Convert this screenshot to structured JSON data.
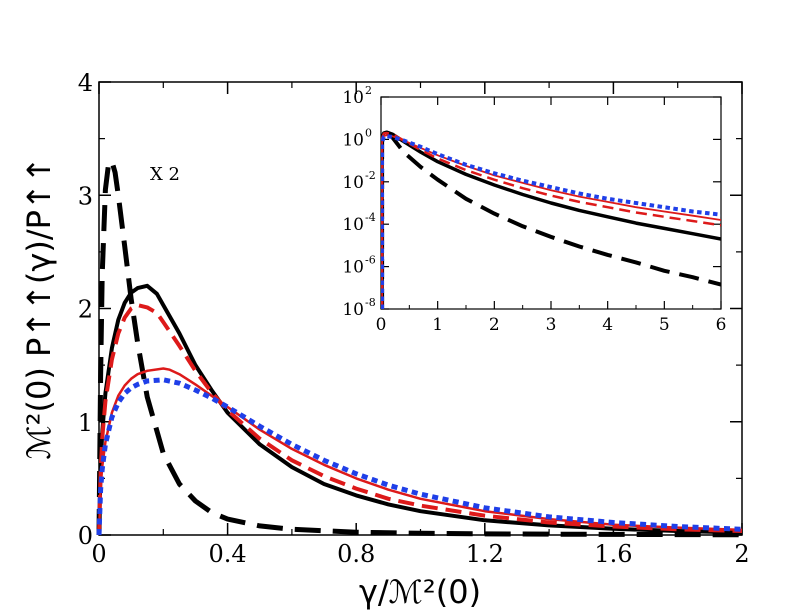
{
  "chart_data": {
    "type": "line",
    "main": {
      "xlabel": "γ/ℳ²(0)",
      "ylabel": "ℳ²(0) P↑↑(γ)/P↑↑",
      "xlim": [
        0,
        2
      ],
      "ylim": [
        0,
        4
      ],
      "xticks": [
        0,
        0.4,
        0.8,
        1.2,
        1.6,
        2
      ],
      "xtick_labels": [
        "0",
        "0.4",
        "0.8",
        "1.2",
        "1.6",
        "2"
      ],
      "yticks": [
        0,
        1,
        2,
        3,
        4
      ],
      "ytick_labels": [
        "0",
        "1",
        "2",
        "3",
        "4"
      ],
      "annotation": "X 2",
      "series": [
        {
          "name": "black dashed (x2)",
          "color": "#000000",
          "style": "long-dash",
          "width": 5,
          "x": [
            0,
            0.005,
            0.01,
            0.02,
            0.03,
            0.04,
            0.05,
            0.06,
            0.08,
            0.1,
            0.12,
            0.15,
            0.2,
            0.25,
            0.3,
            0.35,
            0.4,
            0.5,
            0.6,
            0.8,
            1.0,
            1.2,
            1.6,
            2.0
          ],
          "y": [
            0,
            1.4,
            2.3,
            3.05,
            3.28,
            3.3,
            3.2,
            3.0,
            2.55,
            2.08,
            1.7,
            1.22,
            0.72,
            0.45,
            0.3,
            0.2,
            0.14,
            0.08,
            0.05,
            0.025,
            0.015,
            0.01,
            0.005,
            0.002
          ]
        },
        {
          "name": "black solid",
          "color": "#000000",
          "style": "solid",
          "width": 4,
          "x": [
            0,
            0.005,
            0.01,
            0.02,
            0.04,
            0.06,
            0.08,
            0.1,
            0.12,
            0.15,
            0.18,
            0.2,
            0.25,
            0.3,
            0.35,
            0.4,
            0.5,
            0.6,
            0.7,
            0.8,
            0.9,
            1.0,
            1.2,
            1.4,
            1.6,
            1.8,
            2.0
          ],
          "y": [
            0,
            0.6,
            0.9,
            1.25,
            1.65,
            1.9,
            2.05,
            2.14,
            2.18,
            2.2,
            2.13,
            2.03,
            1.78,
            1.5,
            1.28,
            1.08,
            0.8,
            0.6,
            0.45,
            0.35,
            0.27,
            0.21,
            0.13,
            0.085,
            0.055,
            0.035,
            0.022
          ]
        },
        {
          "name": "red long-dashed",
          "color": "#dd1a1a",
          "style": "dash",
          "width": 4,
          "x": [
            0,
            0.005,
            0.01,
            0.02,
            0.04,
            0.06,
            0.08,
            0.1,
            0.12,
            0.15,
            0.18,
            0.2,
            0.25,
            0.3,
            0.35,
            0.4,
            0.5,
            0.6,
            0.7,
            0.8,
            0.9,
            1.0,
            1.2,
            1.4,
            1.6,
            1.8,
            2.0
          ],
          "y": [
            0,
            0.55,
            0.85,
            1.18,
            1.55,
            1.78,
            1.92,
            2.0,
            2.03,
            2.01,
            1.96,
            1.88,
            1.67,
            1.45,
            1.26,
            1.1,
            0.85,
            0.66,
            0.52,
            0.41,
            0.32,
            0.26,
            0.17,
            0.11,
            0.075,
            0.05,
            0.035
          ]
        },
        {
          "name": "red solid",
          "color": "#dd1a1a",
          "style": "solid",
          "width": 2.5,
          "x": [
            0,
            0.005,
            0.01,
            0.02,
            0.04,
            0.06,
            0.08,
            0.1,
            0.12,
            0.15,
            0.2,
            0.22,
            0.25,
            0.3,
            0.35,
            0.4,
            0.5,
            0.6,
            0.7,
            0.8,
            0.9,
            1.0,
            1.2,
            1.4,
            1.6,
            1.8,
            2.0
          ],
          "y": [
            0,
            0.42,
            0.6,
            0.82,
            1.08,
            1.23,
            1.32,
            1.38,
            1.42,
            1.45,
            1.47,
            1.46,
            1.42,
            1.33,
            1.23,
            1.13,
            0.93,
            0.76,
            0.62,
            0.5,
            0.4,
            0.32,
            0.21,
            0.14,
            0.09,
            0.065,
            0.045
          ]
        },
        {
          "name": "blue dotted",
          "color": "#1f3fe8",
          "style": "dot",
          "width": 5,
          "x": [
            0,
            0.005,
            0.01,
            0.02,
            0.04,
            0.06,
            0.08,
            0.1,
            0.12,
            0.15,
            0.2,
            0.25,
            0.3,
            0.35,
            0.4,
            0.5,
            0.6,
            0.7,
            0.8,
            0.9,
            1.0,
            1.2,
            1.4,
            1.6,
            1.8,
            2.0
          ],
          "y": [
            0,
            0.4,
            0.58,
            0.8,
            1.04,
            1.17,
            1.25,
            1.3,
            1.33,
            1.36,
            1.37,
            1.34,
            1.28,
            1.21,
            1.13,
            0.96,
            0.8,
            0.66,
            0.54,
            0.44,
            0.36,
            0.24,
            0.16,
            0.11,
            0.075,
            0.05
          ]
        }
      ]
    },
    "inset": {
      "xlim": [
        0,
        6
      ],
      "ylim_log10": [
        -8,
        2
      ],
      "yscale": "log",
      "xticks": [
        0,
        1,
        2,
        3,
        4,
        5,
        6
      ],
      "xtick_labels": [
        "0",
        "1",
        "2",
        "3",
        "4",
        "5",
        "6"
      ],
      "yticks_exp": [
        2,
        0,
        -2,
        -4,
        -6,
        -8
      ],
      "ytick_base": "10",
      "ytick_exponents": [
        "2",
        "0",
        "-2",
        "-4",
        "-6",
        "-8"
      ],
      "series": [
        {
          "name": "black dashed",
          "color": "#000000",
          "style": "long-dash",
          "width": 4,
          "x": [
            0.02,
            0.05,
            0.1,
            0.2,
            0.4,
            0.7,
            1,
            1.5,
            2,
            2.5,
            3,
            3.5,
            4,
            4.5,
            5,
            5.5,
            6
          ],
          "log10y": [
            -0.1,
            0.3,
            0.32,
            0.1,
            -0.6,
            -1.3,
            -1.9,
            -2.8,
            -3.5,
            -4.1,
            -4.6,
            -5.05,
            -5.45,
            -5.8,
            -6.2,
            -6.5,
            -6.85
          ]
        },
        {
          "name": "black solid",
          "color": "#000000",
          "style": "solid",
          "width": 3.5,
          "x": [
            0.02,
            0.05,
            0.1,
            0.2,
            0.4,
            0.7,
            1,
            1.5,
            2,
            2.5,
            3,
            3.5,
            4,
            4.5,
            5,
            5.5,
            6
          ],
          "log10y": [
            0.1,
            0.3,
            0.34,
            0.25,
            -0.1,
            -0.6,
            -1.05,
            -1.65,
            -2.15,
            -2.6,
            -3.0,
            -3.35,
            -3.65,
            -3.95,
            -4.2,
            -4.45,
            -4.7
          ]
        },
        {
          "name": "red long-dashed",
          "color": "#dd1a1a",
          "style": "dash",
          "width": 2.5,
          "x": [
            0.02,
            0.05,
            0.1,
            0.2,
            0.4,
            0.7,
            1,
            1.5,
            2,
            2.5,
            3,
            3.5,
            4,
            4.5,
            5,
            5.5,
            6
          ],
          "log10y": [
            0.05,
            0.28,
            0.3,
            0.25,
            -0.05,
            -0.5,
            -0.9,
            -1.45,
            -1.9,
            -2.3,
            -2.65,
            -2.95,
            -3.2,
            -3.45,
            -3.65,
            -3.85,
            -4.05
          ]
        },
        {
          "name": "red solid",
          "color": "#dd1a1a",
          "style": "solid",
          "width": 1.8,
          "x": [
            0.02,
            0.05,
            0.1,
            0.2,
            0.4,
            0.7,
            1,
            1.5,
            2,
            2.5,
            3,
            3.5,
            4,
            4.5,
            5,
            5.5,
            6
          ],
          "log10y": [
            -0.1,
            0.15,
            0.2,
            0.15,
            -0.05,
            -0.4,
            -0.75,
            -1.25,
            -1.7,
            -2.05,
            -2.4,
            -2.7,
            -2.95,
            -3.2,
            -3.4,
            -3.6,
            -3.8
          ]
        },
        {
          "name": "blue dotted",
          "color": "#1f3fe8",
          "style": "dot",
          "width": 4,
          "x": [
            0.02,
            0.05,
            0.1,
            0.2,
            0.4,
            0.7,
            1,
            1.5,
            2,
            2.5,
            3,
            3.5,
            4,
            4.5,
            5,
            5.5,
            6
          ],
          "log10y": [
            -0.15,
            0.12,
            0.15,
            0.12,
            -0.05,
            -0.35,
            -0.7,
            -1.2,
            -1.6,
            -1.95,
            -2.25,
            -2.55,
            -2.8,
            -3.0,
            -3.2,
            -3.4,
            -3.55
          ]
        }
      ]
    }
  }
}
